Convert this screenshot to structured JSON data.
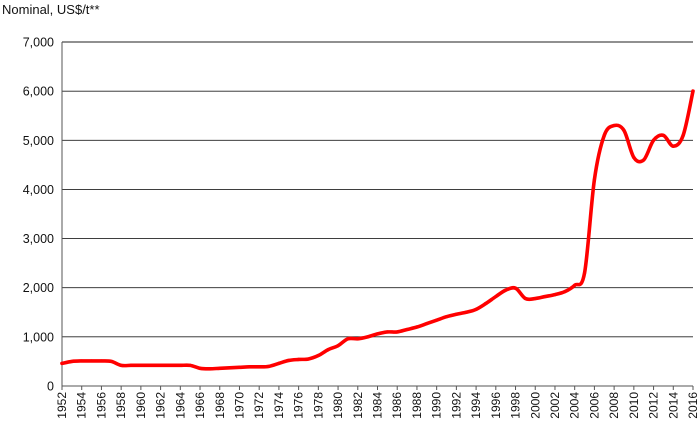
{
  "chart_data": {
    "type": "line",
    "title": "",
    "ylabel": "Nominal, US$/t**",
    "xlabel": "",
    "ylim": [
      0,
      7000
    ],
    "yticks": [
      0,
      1000,
      2000,
      3000,
      4000,
      5000,
      6000,
      7000
    ],
    "ytick_labels": [
      "0",
      "1,000",
      "2,000",
      "3,000",
      "4,000",
      "5,000",
      "6,000",
      "7,000"
    ],
    "xlim": [
      1952,
      2016
    ],
    "xtick_labels": [
      "1952",
      "1954",
      "1956",
      "1958",
      "1960",
      "1962",
      "1964",
      "1966",
      "1968",
      "1970",
      "1972",
      "1974",
      "1976",
      "1978",
      "1980",
      "1982",
      "1984",
      "1986",
      "1988",
      "1990",
      "1992",
      "1994",
      "1996",
      "1998",
      "2000",
      "2002",
      "2004",
      "2006",
      "2008",
      "2010",
      "2012",
      "2014",
      "2016"
    ],
    "grid": true,
    "line_color": "#ff0000",
    "series": [
      {
        "x": [
          1952,
          1953,
          1954,
          1955,
          1956,
          1957,
          1958,
          1959,
          1960,
          1961,
          1962,
          1963,
          1964,
          1965,
          1966,
          1967,
          1968,
          1969,
          1970,
          1971,
          1972,
          1973,
          1974,
          1975,
          1976,
          1977,
          1978,
          1979,
          1980,
          1981,
          1982,
          1983,
          1984,
          1985,
          1986,
          1987,
          1988,
          1989,
          1990,
          1991,
          1992,
          1993,
          1994,
          1995,
          1996,
          1997,
          1998,
          1999,
          2000,
          2001,
          2002,
          2003,
          2004,
          2005,
          2006,
          2007,
          2008,
          2009,
          2010,
          2011,
          2012,
          2013,
          2014,
          2015,
          2016
        ],
        "y": [
          460,
          500,
          510,
          510,
          510,
          500,
          420,
          420,
          420,
          420,
          420,
          420,
          420,
          420,
          360,
          350,
          360,
          370,
          380,
          390,
          390,
          400,
          460,
          520,
          540,
          550,
          620,
          740,
          820,
          960,
          960,
          1000,
          1060,
          1100,
          1100,
          1150,
          1200,
          1270,
          1340,
          1410,
          1460,
          1500,
          1560,
          1680,
          1820,
          1950,
          1990,
          1780,
          1780,
          1820,
          1860,
          1920,
          2050,
          2300,
          4200,
          5100,
          5300,
          5200,
          4650,
          4600,
          5000,
          5100,
          4880,
          5100,
          6000
        ]
      }
    ]
  }
}
